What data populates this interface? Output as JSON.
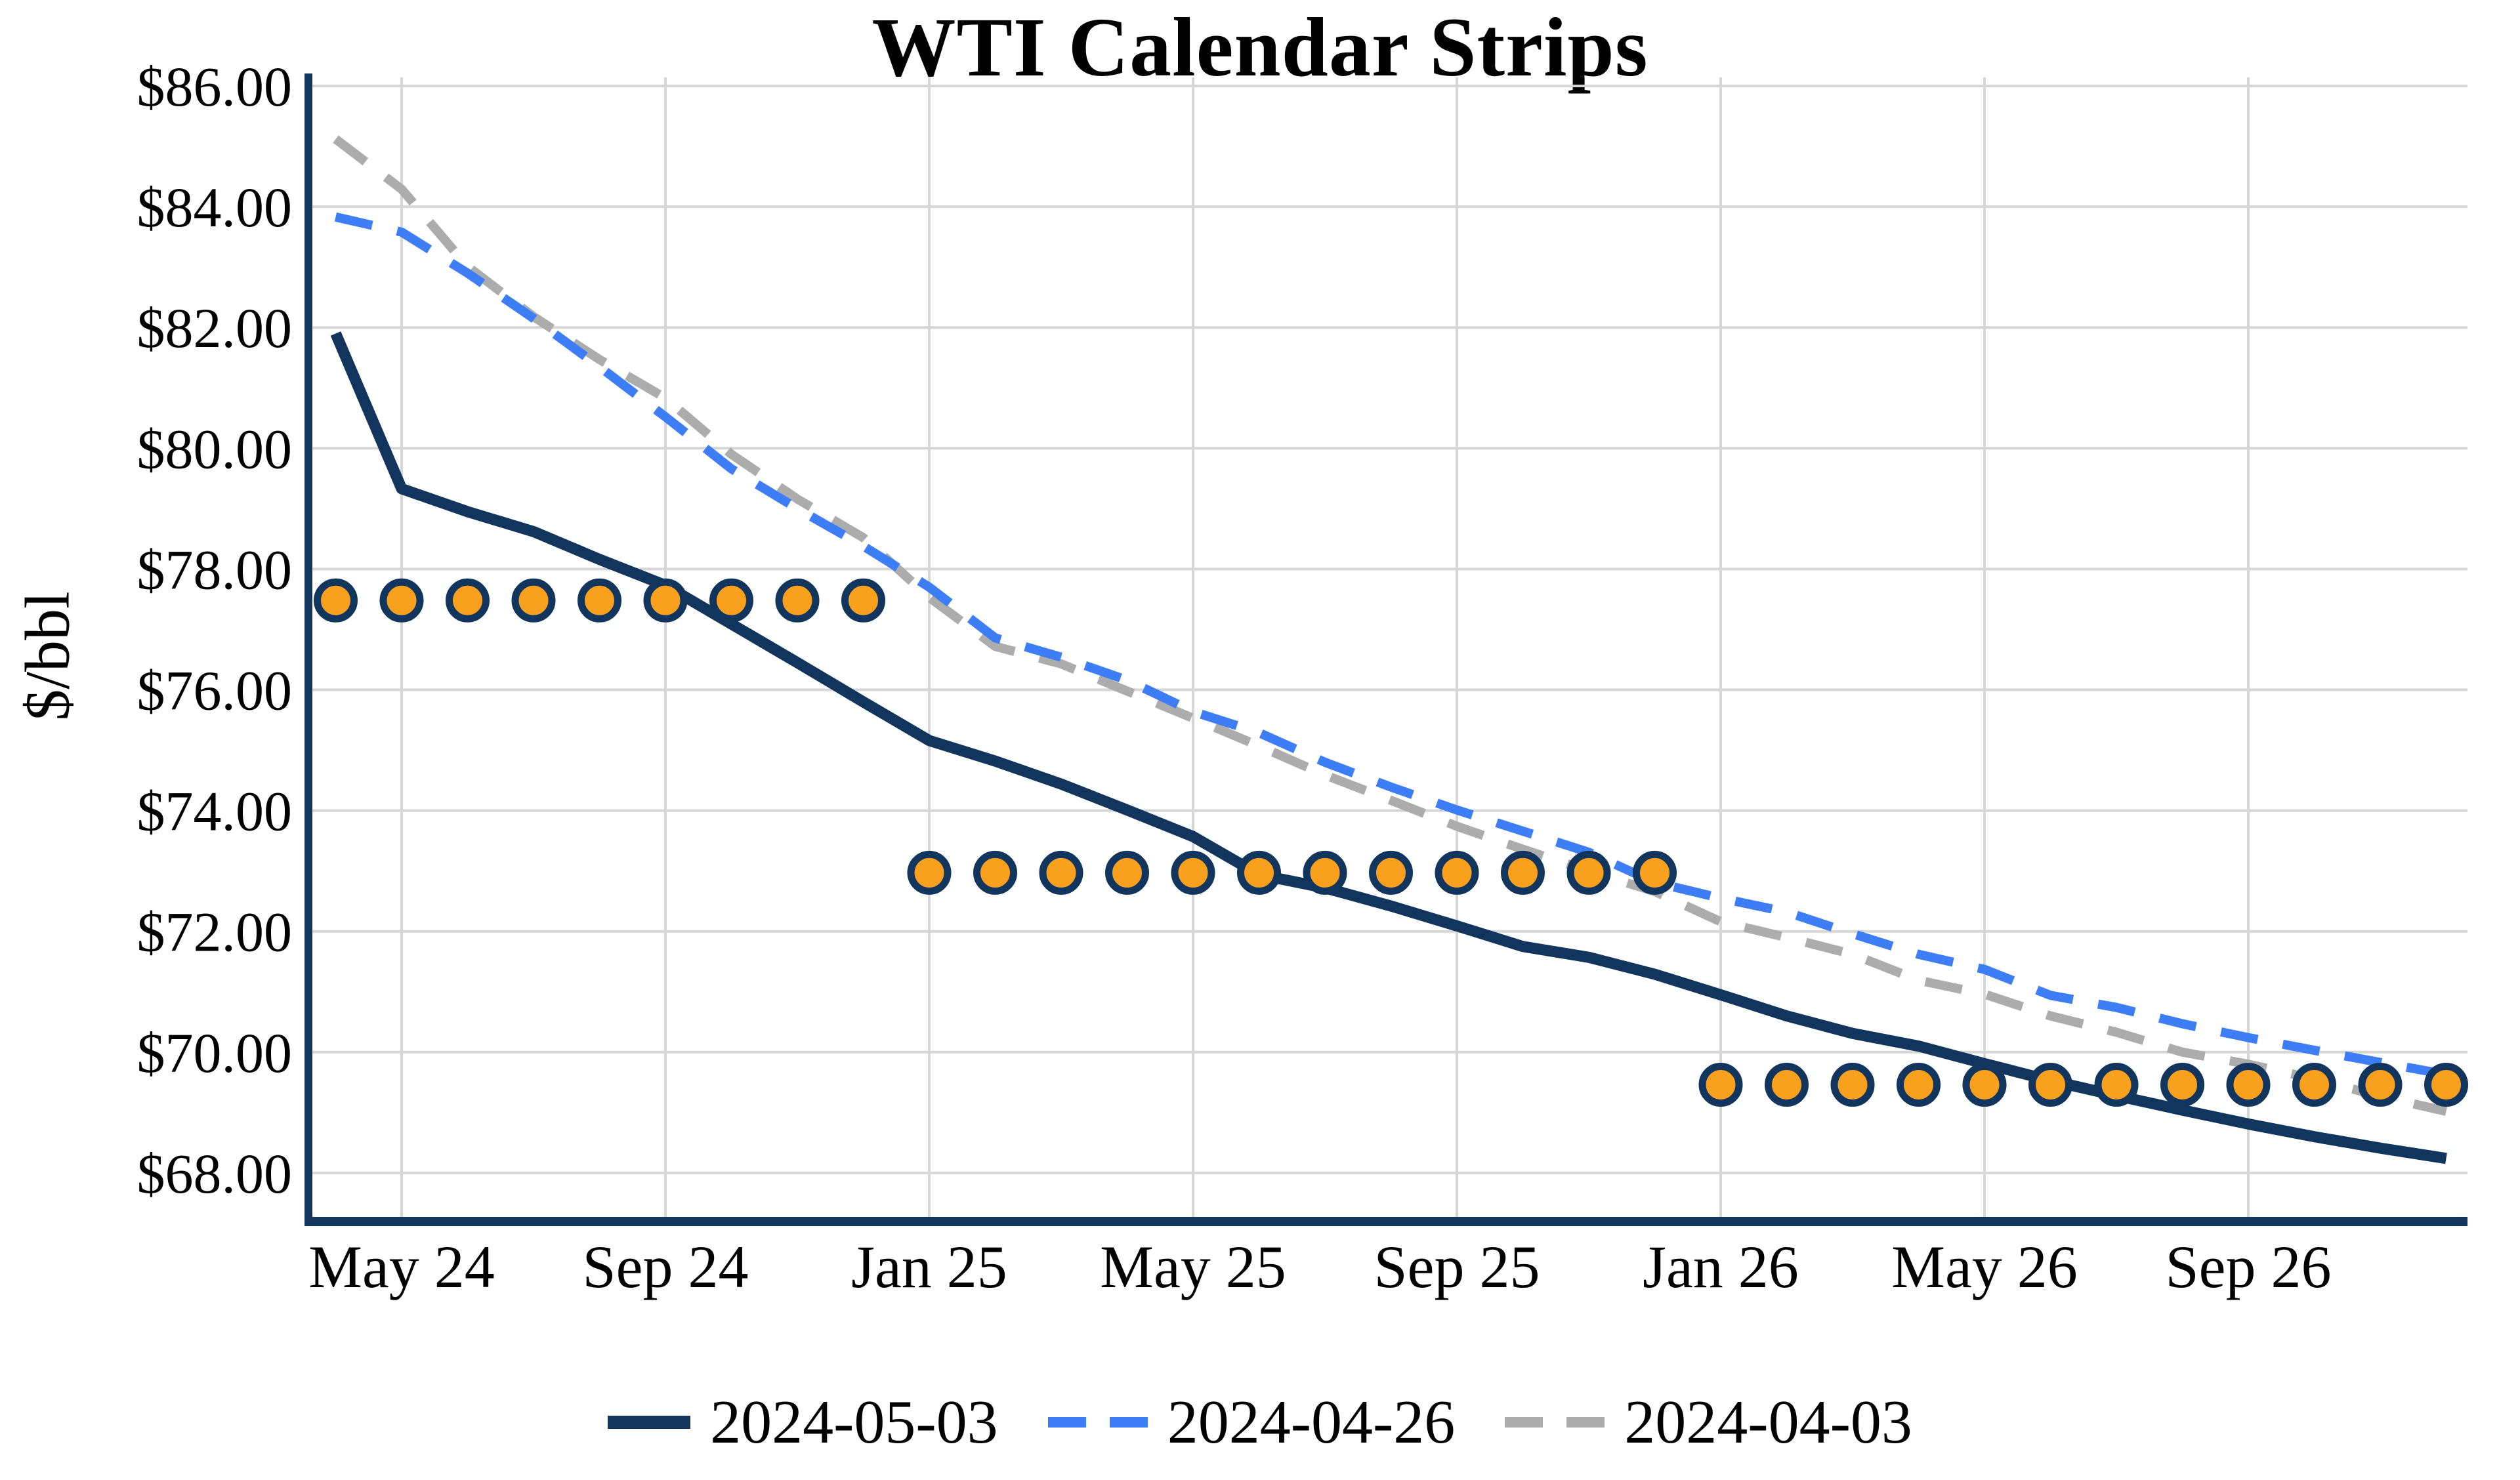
{
  "chart_data": {
    "type": "line",
    "title": "WTI Calendar Strips",
    "ylabel": "$/bbl",
    "xlabel": "",
    "ylim": [
      67.2,
      86.2
    ],
    "grid": true,
    "legend_position": "bottom",
    "y_ticks": [
      "$86.00",
      "$84.00",
      "$82.00",
      "$80.00",
      "$78.00",
      "$76.00",
      "$74.00",
      "$72.00",
      "$70.00",
      "$68.00"
    ],
    "y_tick_values": [
      86,
      84,
      82,
      80,
      78,
      76,
      74,
      72,
      70,
      68
    ],
    "x_tick_labels": [
      "May 24",
      "Sep 24",
      "Jan 25",
      "May 25",
      "Sep 25",
      "Jan 26",
      "May 26",
      "Sep 26"
    ],
    "x_tick_indices": [
      1,
      5,
      9,
      13,
      17,
      21,
      25,
      29
    ],
    "x": [
      "Apr 24",
      "May 24",
      "Jun 24",
      "Jul 24",
      "Aug 24",
      "Sep 24",
      "Oct 24",
      "Nov 24",
      "Dec 24",
      "Jan 25",
      "Feb 25",
      "Mar 25",
      "Apr 25",
      "May 25",
      "Jun 25",
      "Jul 25",
      "Aug 25",
      "Sep 25",
      "Oct 25",
      "Nov 25",
      "Dec 25",
      "Jan 26",
      "Feb 26",
      "Mar 26",
      "Apr 26",
      "May 26",
      "Jun 26",
      "Jul 26",
      "Aug 26",
      "Sep 26",
      "Oct 26",
      "Nov 26",
      "Dec 26"
    ],
    "series": [
      {
        "name": "2024-05-03",
        "style": "solid",
        "color_key": "navy",
        "values": [
          81.9,
          79.33,
          78.95,
          78.62,
          78.16,
          77.73,
          77.09,
          76.45,
          75.8,
          75.16,
          74.82,
          74.44,
          74.01,
          73.57,
          72.94,
          72.72,
          72.42,
          72.09,
          71.75,
          71.57,
          71.29,
          70.95,
          70.6,
          70.31,
          70.1,
          69.81,
          69.53,
          69.28,
          69.04,
          68.81,
          68.6,
          68.41,
          68.24
        ]
      },
      {
        "name": "2024-04-26",
        "style": "dashed",
        "color_key": "blue",
        "values": [
          83.83,
          83.58,
          82.9,
          82.15,
          81.35,
          80.52,
          79.66,
          79.0,
          78.38,
          77.7,
          76.86,
          76.54,
          76.16,
          75.64,
          75.29,
          74.8,
          74.39,
          74.01,
          73.66,
          73.31,
          72.81,
          72.55,
          72.32,
          71.96,
          71.62,
          71.37,
          70.94,
          70.74,
          70.47,
          70.24,
          70.03,
          69.83,
          69.63
        ]
      },
      {
        "name": "2024-04-03",
        "style": "dashed",
        "color_key": "gray",
        "values": [
          85.12,
          84.29,
          83.01,
          82.18,
          81.47,
          80.83,
          79.9,
          79.16,
          78.52,
          77.53,
          76.72,
          76.43,
          75.98,
          75.53,
          75.07,
          74.59,
          74.17,
          73.74,
          73.36,
          73.0,
          72.66,
          72.16,
          71.9,
          71.62,
          71.19,
          70.96,
          70.6,
          70.33,
          70.0,
          69.8,
          69.56,
          69.27,
          69.02
        ]
      }
    ],
    "markers": [
      {
        "name": "strip-2024",
        "value": 77.48,
        "start_index": 0,
        "end_index": 8
      },
      {
        "name": "strip-2025",
        "value": 72.97,
        "start_index": 9,
        "end_index": 20
      },
      {
        "name": "strip-2026",
        "value": 69.46,
        "start_index": 21,
        "end_index": 32
      }
    ],
    "colors": {
      "navy": "#12355E",
      "blue": "#3D7EF6",
      "gray": "#ACACAC",
      "orange": "#F9A01E",
      "grid": "#D6D6D6"
    }
  },
  "legend": {
    "items": [
      {
        "label": "2024-05-03"
      },
      {
        "label": "2024-04-26"
      },
      {
        "label": "2024-04-03"
      }
    ]
  }
}
